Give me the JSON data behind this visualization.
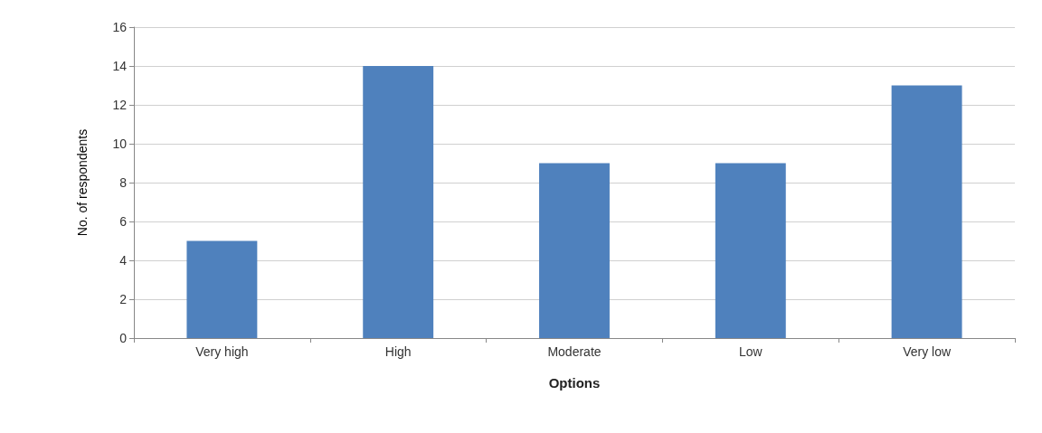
{
  "chart_data": {
    "type": "bar",
    "xlabel": "Options",
    "ylabel": "No. of respondents",
    "categories": [
      "Very high",
      "High",
      "Moderate",
      "Low",
      "Very low"
    ],
    "values": [
      5,
      14,
      9,
      9,
      13
    ],
    "color": "#4f81bd",
    "ylim": [
      0,
      16
    ],
    "yticks": [
      0,
      2,
      4,
      6,
      8,
      10,
      12,
      14,
      16
    ],
    "grid": "y"
  }
}
